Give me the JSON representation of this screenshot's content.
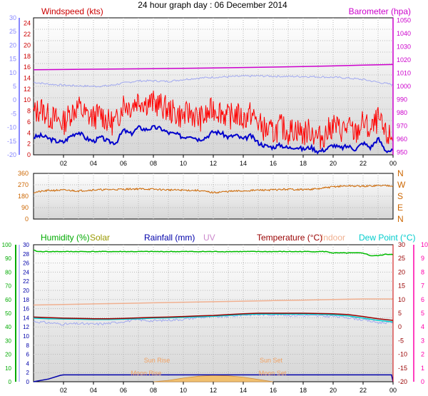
{
  "title": "24 hour graph day : 06 December 2014",
  "colors": {
    "windspeed": "#cc0000",
    "gust": "#ff0000",
    "avgwind": "#0000cc",
    "barometer": "#cc00cc",
    "temp_chill": "#a0a8f0",
    "direction": "#cc6600",
    "humidity": "#00bb00",
    "solar": "#999900",
    "rainfall": "#0000aa",
    "uv": "#cc88cc",
    "temperature": "#990000",
    "indoor": "#f0b090",
    "dewpoint": "#00cccc",
    "left_axis": "#8888ff",
    "pink_axis": "#ff00aa",
    "green_axis": "#00aa00",
    "sun_label": "#f0a060"
  },
  "chart_data": [
    {
      "id": "wind_baro",
      "type": "line",
      "title": "",
      "left_label": "Windspeed (kts)",
      "right_label": "Barometer (hpa)",
      "windspeed_ticks": [
        "24",
        "22",
        "20",
        "18",
        "16",
        "14",
        "12",
        "10",
        "8",
        "6",
        "4",
        "2",
        "0"
      ],
      "barometer_ticks": [
        "1050",
        "1040",
        "1030",
        "1020",
        "1010",
        "1000",
        "990",
        "980",
        "970",
        "960",
        "950"
      ],
      "outer_left_ticks": [
        "30",
        "25",
        "20",
        "15",
        "10",
        "5",
        "0",
        "-5",
        "-10",
        "-15",
        "-20"
      ],
      "ylim_windspeed": [
        0,
        25
      ],
      "ylim_barometer": [
        948,
        1052
      ],
      "ylim_outer_left": [
        -20,
        30
      ],
      "x_ticks": [
        "02",
        "04",
        "06",
        "08",
        "10",
        "12",
        "14",
        "16",
        "18",
        "20",
        "22",
        "00"
      ],
      "series": [
        {
          "key": "barometer",
          "x": [
            0,
            2,
            4,
            6,
            8,
            10,
            12,
            14,
            16,
            18,
            20,
            22,
            24
          ],
          "values": [
            1012.6,
            1012.8,
            1013.0,
            1013.2,
            1013.4,
            1013.7,
            1014.0,
            1014.3,
            1014.6,
            1015.0,
            1015.5,
            1016.1,
            1016.6
          ]
        },
        {
          "key": "temp_chill",
          "x": [
            0,
            1,
            2,
            3,
            4,
            5,
            6,
            7,
            8,
            9,
            10,
            11,
            12,
            13,
            14,
            15,
            16,
            17,
            18,
            19,
            20,
            21,
            22,
            23,
            24
          ],
          "values": [
            6.5,
            5.8,
            5.4,
            5.2,
            5.0,
            5.2,
            6.2,
            7.0,
            7.0,
            6.8,
            7.5,
            8.0,
            8.3,
            8.5,
            8.7,
            8.8,
            8.7,
            8.6,
            8.6,
            8.5,
            8.3,
            8.0,
            7.5,
            6.5,
            5.6
          ]
        },
        {
          "key": "avgwind",
          "x": [
            0,
            0.5,
            1,
            1.5,
            2,
            2.5,
            3,
            3.5,
            4,
            4.5,
            5,
            5.5,
            6,
            6.5,
            7,
            7.5,
            8,
            8.5,
            9,
            9.5,
            10,
            10.5,
            11,
            11.5,
            12,
            12.5,
            13,
            13.5,
            14,
            14.5,
            15,
            15.5,
            16,
            16.5,
            17,
            17.5,
            18,
            18.5,
            19,
            19.5,
            20,
            20.5,
            21,
            21.5,
            22,
            22.5,
            23,
            23.5,
            24
          ],
          "values": [
            3.2,
            3.5,
            3.0,
            2.5,
            2.3,
            3.5,
            4.2,
            3.0,
            2.5,
            3.2,
            2.4,
            2.2,
            4.5,
            3.8,
            5.0,
            4.6,
            5.0,
            4.8,
            4.0,
            3.8,
            3.2,
            3.6,
            2.8,
            3.2,
            4.2,
            4.0,
            3.2,
            3.6,
            2.8,
            3.5,
            2.2,
            1.6,
            1.4,
            1.8,
            1.2,
            1.5,
            1.0,
            1.4,
            0.6,
            1.0,
            1.8,
            1.2,
            1.6,
            1.0,
            2.2,
            1.3,
            3.0,
            0.8,
            0.7
          ]
        },
        {
          "key": "gust",
          "x": [
            0,
            0.5,
            1,
            1.5,
            2,
            2.5,
            3,
            3.5,
            4,
            4.5,
            5,
            5.5,
            6,
            6.5,
            7,
            7.5,
            8,
            8.5,
            9,
            9.5,
            10,
            10.5,
            11,
            11.5,
            12,
            12.5,
            13,
            13.5,
            14,
            14.5,
            15,
            15.5,
            16,
            16.5,
            17,
            17.5,
            18,
            18.5,
            19,
            19.5,
            20,
            20.5,
            21,
            21.5,
            22,
            22.5,
            23,
            23.5,
            24
          ],
          "values": [
            7.5,
            8.5,
            7.0,
            6.5,
            5.8,
            7.8,
            8.8,
            7.2,
            6.8,
            7.5,
            6.0,
            5.8,
            9.5,
            8.8,
            10.2,
            9.5,
            9.5,
            9.0,
            8.2,
            7.5,
            7.0,
            7.8,
            6.5,
            7.0,
            8.5,
            8.0,
            6.8,
            7.5,
            6.5,
            7.5,
            5.8,
            4.5,
            4.0,
            5.2,
            4.2,
            4.8,
            3.8,
            4.5,
            3.0,
            3.8,
            5.5,
            4.5,
            5.0,
            3.8,
            6.0,
            4.2,
            6.5,
            3.5,
            3.2
          ]
        }
      ]
    },
    {
      "id": "direction",
      "type": "line",
      "title": "",
      "left_ticks": [
        "360",
        "270",
        "180",
        "90",
        "0"
      ],
      "compass_labels": [
        "N",
        "W",
        "S",
        "E",
        "N"
      ],
      "ylim": [
        0,
        360
      ],
      "series": [
        {
          "key": "direction",
          "x": [
            0,
            1,
            2,
            3,
            4,
            5,
            6,
            7,
            8,
            9,
            10,
            11,
            12,
            13,
            14,
            15,
            16,
            17,
            18,
            19,
            20,
            21,
            22,
            23,
            24
          ],
          "values": [
            210,
            225,
            228,
            222,
            230,
            232,
            235,
            238,
            235,
            230,
            228,
            225,
            208,
            218,
            222,
            228,
            230,
            235,
            232,
            238,
            255,
            262,
            258,
            264,
            264
          ]
        }
      ]
    },
    {
      "id": "temp_hum",
      "type": "line",
      "title": "",
      "legend": [
        "Humidity (%)",
        "Solar",
        "Rainfall (mm)",
        "UV",
        "Temperature (°C)",
        "Indoor",
        "Dew Point (°C)"
      ],
      "humidity_ticks": [
        "100",
        "90",
        "80",
        "70",
        "60",
        "50",
        "40",
        "30",
        "20",
        "10",
        "0"
      ],
      "rain_ticks": [
        "30",
        "28",
        "26",
        "24",
        "22",
        "20",
        "18",
        "16",
        "14",
        "12",
        "10",
        "8",
        "6",
        "4",
        "2",
        "0"
      ],
      "temp_ticks": [
        "30",
        "25",
        "20",
        "15",
        "10",
        "5",
        "0",
        "-5",
        "-10",
        "-15",
        "-20"
      ],
      "uv_ticks": [
        "10",
        "9",
        "8",
        "7",
        "6",
        "5",
        "4",
        "3",
        "2",
        "1",
        "0"
      ],
      "ylim_humidity": [
        0,
        100
      ],
      "ylim_rain": [
        0,
        30
      ],
      "ylim_temp": [
        -20,
        30
      ],
      "ylim_uv": [
        0,
        10
      ],
      "x_ticks": [
        "02",
        "04",
        "06",
        "08",
        "10",
        "12",
        "14",
        "16",
        "18",
        "20",
        "22",
        "00"
      ],
      "sun_rise_label": "Sun Rise",
      "sun_set_label": "Sun Set",
      "moon_rise_label": "Moon Rise",
      "moon_set_label": "Moon Set",
      "sun_rise_hour": 8,
      "sun_set_hour": 15.9,
      "moon_rise_hour": 7.8,
      "moon_set_hour": 16,
      "series": [
        {
          "key": "humidity",
          "x": [
            0,
            0.3,
            2,
            4,
            6,
            8,
            10,
            12,
            14,
            16,
            18,
            19.5,
            20,
            22,
            22.5,
            23,
            23.5,
            24
          ],
          "values": [
            96,
            95,
            95,
            95,
            95,
            95,
            95,
            95,
            95,
            95,
            95,
            95,
            94,
            94,
            92,
            92,
            93,
            93
          ]
        },
        {
          "key": "indoor",
          "x": [
            0,
            2,
            4,
            6,
            8,
            10,
            12,
            14,
            16,
            18,
            20,
            22,
            24
          ],
          "values": [
            8.0,
            8.2,
            8.4,
            8.6,
            8.8,
            9.0,
            9.2,
            9.4,
            9.6,
            9.8,
            10.0,
            10.2,
            10.2
          ]
        },
        {
          "key": "temperature",
          "x": [
            0,
            1,
            2,
            3,
            4,
            5,
            6,
            7,
            8,
            9,
            10,
            11,
            12,
            13,
            14,
            15,
            16,
            17,
            18,
            19,
            20,
            21,
            22,
            23,
            24
          ],
          "values": [
            3.6,
            3.4,
            3.2,
            3.1,
            3.0,
            3.0,
            3.1,
            3.3,
            3.5,
            3.6,
            3.8,
            4.0,
            4.2,
            4.5,
            4.8,
            5.0,
            5.0,
            5.0,
            5.0,
            4.9,
            4.8,
            4.5,
            3.8,
            3.0,
            2.4
          ]
        },
        {
          "key": "dewpoint",
          "x": [
            0,
            1,
            2,
            3,
            4,
            5,
            6,
            7,
            8,
            9,
            10,
            11,
            12,
            13,
            14,
            15,
            16,
            17,
            18,
            19,
            20,
            21,
            22,
            23,
            24
          ],
          "values": [
            3.2,
            3.0,
            2.9,
            2.8,
            2.7,
            2.7,
            2.8,
            3.0,
            3.2,
            3.3,
            3.5,
            3.7,
            3.9,
            4.2,
            4.5,
            4.7,
            4.7,
            4.7,
            4.7,
            4.6,
            4.4,
            4.0,
            3.2,
            2.4,
            1.8
          ]
        },
        {
          "key": "temp_chill",
          "x": [
            0,
            1,
            2,
            3,
            4,
            5,
            6,
            7,
            8,
            9,
            10,
            11,
            12,
            13,
            14,
            15,
            16,
            17,
            18,
            19,
            20,
            21,
            22,
            23,
            24
          ],
          "values": [
            2.0,
            1.5,
            1.0,
            1.2,
            1.0,
            1.3,
            2.0,
            2.6,
            2.2,
            2.5,
            2.8,
            3.5,
            3.6,
            3.9,
            4.4,
            4.5,
            4.5,
            4.3,
            4.2,
            4.0,
            3.9,
            3.5,
            2.6,
            1.6,
            1.6
          ]
        },
        {
          "key": "rainfall",
          "x": [
            0,
            1,
            1.8,
            2,
            22,
            23.9,
            24
          ],
          "values": [
            0,
            0.6,
            1.4,
            1.5,
            1.5,
            1.5,
            0
          ]
        },
        {
          "key": "solar",
          "x": [
            8,
            9,
            10,
            11,
            12,
            13,
            14,
            15,
            16
          ],
          "values": [
            0,
            0.3,
            0.8,
            1.2,
            1.4,
            1.3,
            1.0,
            0.5,
            0
          ]
        }
      ]
    }
  ]
}
